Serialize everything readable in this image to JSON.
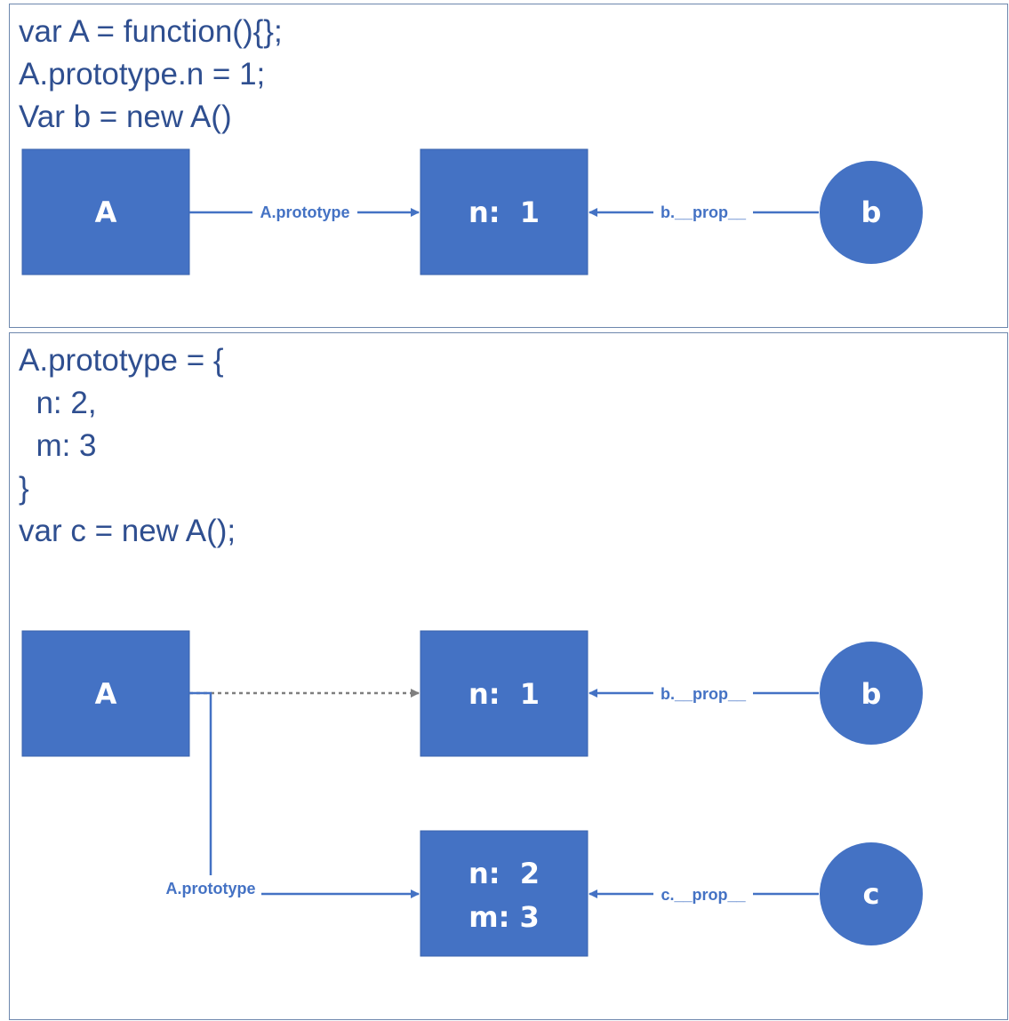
{
  "colors": {
    "node_fill": "#4472c4",
    "edge": "#4472c4",
    "stale_edge": "#7f7f7f",
    "code_text": "#2f4f90",
    "panel_border": "#6d87ad"
  },
  "panel1": {
    "code_lines": [
      "var A = function(){};",
      "A.prototype.n = 1;",
      "Var b = new A()"
    ],
    "nodes": {
      "A": "A",
      "proto": "n:  1",
      "b": "b"
    },
    "edges": {
      "a_to_proto": "A.prototype",
      "b_to_proto": "b.__prop__"
    }
  },
  "panel2": {
    "code_lines": [
      "A.prototype = {",
      "  n: 2,",
      "  m: 3",
      "}",
      "var c = new A();"
    ],
    "nodes": {
      "A": "A",
      "old_proto": "n:  1",
      "b": "b",
      "new_proto_line1": "n:  2",
      "new_proto_line2": "m: 3",
      "c": "c"
    },
    "edges": {
      "a_to_new_proto": "A.prototype",
      "b_to_old_proto": "b.__prop__",
      "c_to_new_proto": "c.__prop__"
    }
  }
}
